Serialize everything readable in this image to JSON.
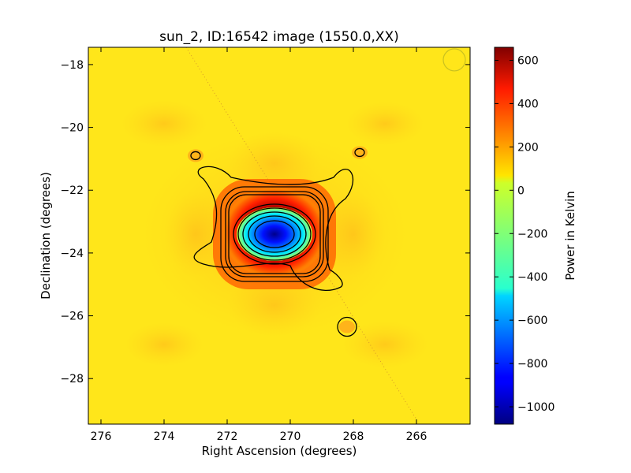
{
  "chart_data": {
    "type": "heatmap",
    "title": "sun_2, ID:16542 image (1550.0,XX)",
    "xlabel": "Right Ascension (degrees)",
    "ylabel": "Declination (degrees)",
    "xlim": [
      276.4,
      264.3
    ],
    "ylim": [
      -29.45,
      -17.45
    ],
    "x_ticks": [
      276,
      274,
      272,
      270,
      268,
      266
    ],
    "y_ticks": [
      -18,
      -20,
      -22,
      -24,
      -26,
      -28
    ],
    "x_tick_labels": [
      "276",
      "274",
      "272",
      "270",
      "268",
      "266"
    ],
    "y_tick_labels": [
      "−18",
      "−20",
      "−22",
      "−24",
      "−26",
      "−28"
    ],
    "colorbar": {
      "label": "Power in Kelvin",
      "colormap": "jet",
      "range": [
        -1080,
        660
      ],
      "ticks": [
        600,
        400,
        200,
        0,
        -200,
        -400,
        -600,
        -800,
        -1000
      ],
      "tick_labels": [
        "600",
        "400",
        "200",
        "0",
        "−200",
        "−400",
        "−600",
        "−800",
        "−1000"
      ]
    },
    "background_level_K": 80,
    "features": [
      {
        "name": "central-negative-core",
        "ra": 270.5,
        "dec": -23.4,
        "peak_K": -1050
      },
      {
        "name": "positive-ring",
        "ra": 270.5,
        "dec": -23.4,
        "peak_K": 620
      },
      {
        "name": "cross-sidelobes",
        "ra": 270.5,
        "dec": -23.4,
        "peak_K": 200
      },
      {
        "name": "island-upper-left",
        "ra": 273.0,
        "dec": -20.9,
        "peak_K": 170
      },
      {
        "name": "island-upper-right",
        "ra": 267.8,
        "dec": -20.8,
        "peak_K": 170
      },
      {
        "name": "island-lower-right",
        "ra": 268.2,
        "dec": -26.35,
        "peak_K": 180
      }
    ],
    "contour_levels_K": [
      150,
      300,
      450,
      600,
      -200,
      -400,
      -600,
      -800
    ],
    "diagonal_track": {
      "from": [
        273.3,
        -17.45
      ],
      "to": [
        266.0,
        -29.3
      ]
    },
    "beam_marker": {
      "ra": 264.8,
      "dec": -17.85
    }
  }
}
